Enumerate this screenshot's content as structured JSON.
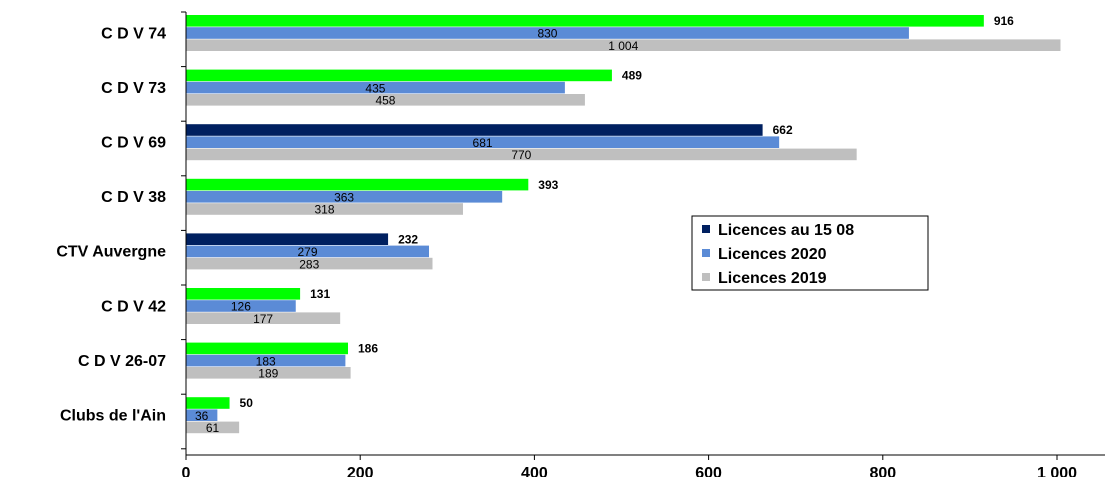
{
  "chart_data": {
    "type": "bar",
    "orientation": "horizontal",
    "title": "",
    "xlabel": "",
    "ylabel": "",
    "xlim": [
      0,
      1000
    ],
    "ticks": [
      0,
      200,
      400,
      600,
      800,
      1000
    ],
    "tick_labels": [
      "0",
      "200",
      "400",
      "600",
      "800",
      "1 000"
    ],
    "categories": [
      "C D V 74",
      "C D V 73",
      "C D V 69",
      "C D V 38",
      "CTV Auvergne",
      "C D V 42",
      "C D V 26-07",
      "Clubs de l'Ain"
    ],
    "series": [
      {
        "name": "Licences au 15 08",
        "values": [
          916,
          489,
          662,
          393,
          232,
          131,
          186,
          50
        ],
        "value_labels": [
          "916",
          "489",
          "662",
          "393",
          "232",
          "131",
          "186",
          "50"
        ],
        "colors": [
          "#00ff00",
          "#00ff00",
          "#002060",
          "#00ff00",
          "#002060",
          "#00ff00",
          "#00ff00",
          "#00ff00"
        ]
      },
      {
        "name": "Licences 2020",
        "values": [
          830,
          435,
          681,
          363,
          279,
          126,
          183,
          36
        ],
        "value_labels": [
          "830",
          "435",
          "681",
          "363",
          "279",
          "126",
          "183",
          "36"
        ],
        "colors": [
          "#5b8bd6",
          "#5b8bd6",
          "#5b8bd6",
          "#5b8bd6",
          "#5b8bd6",
          "#5b8bd6",
          "#5b8bd6",
          "#5b8bd6"
        ]
      },
      {
        "name": "Licences 2019",
        "values": [
          1004,
          458,
          770,
          318,
          283,
          177,
          189,
          61
        ],
        "value_labels": [
          "1 004",
          "458",
          "770",
          "318",
          "283",
          "177",
          "189",
          "61"
        ],
        "colors": [
          "#bfbfbf",
          "#bfbfbf",
          "#bfbfbf",
          "#bfbfbf",
          "#bfbfbf",
          "#bfbfbf",
          "#bfbfbf",
          "#bfbfbf"
        ]
      }
    ],
    "legend": {
      "placement": "right",
      "entries": [
        {
          "label": "Licences au 15 08",
          "color": "#002060"
        },
        {
          "label": "Licences 2020",
          "color": "#5b8bd6"
        },
        {
          "label": "Licences 2019",
          "color": "#bfbfbf"
        }
      ]
    },
    "grid": false
  }
}
